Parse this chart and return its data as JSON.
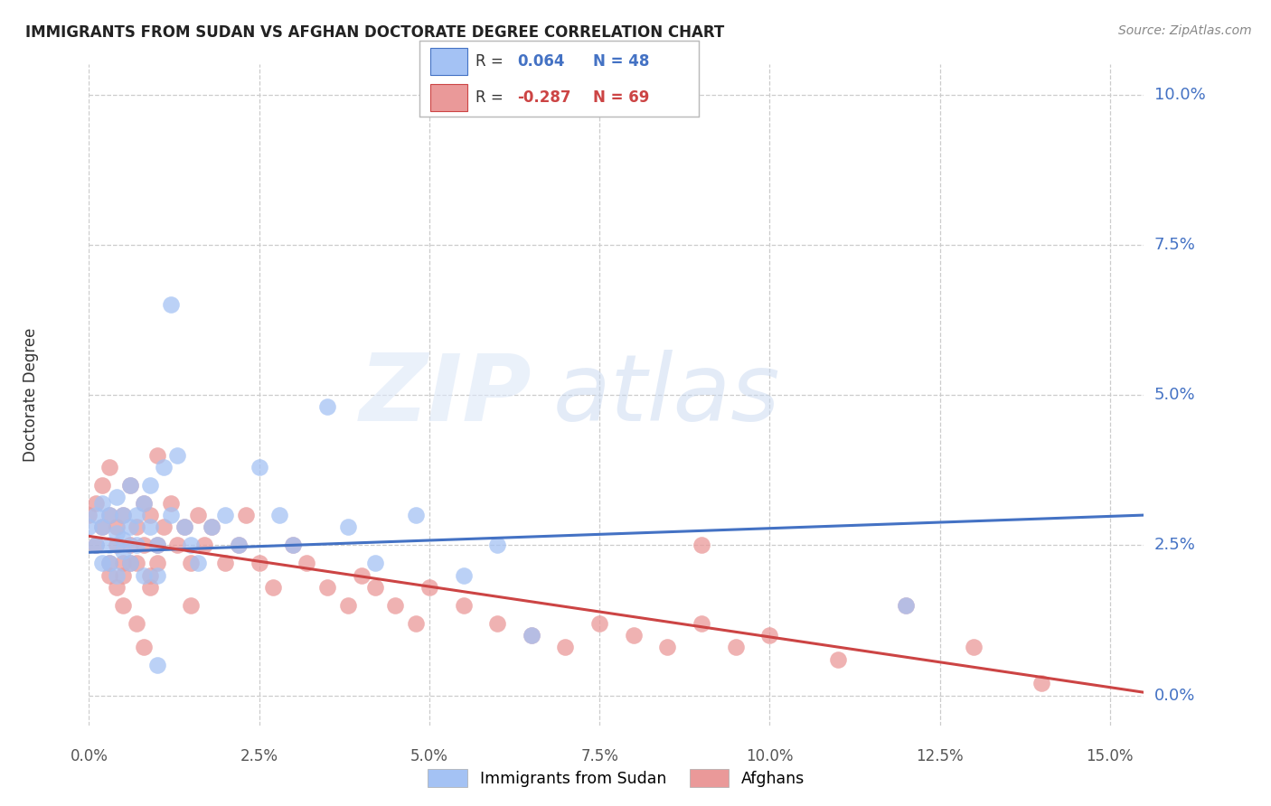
{
  "title": "IMMIGRANTS FROM SUDAN VS AFGHAN DOCTORATE DEGREE CORRELATION CHART",
  "source": "Source: ZipAtlas.com",
  "ylabel": "Doctorate Degree",
  "xlim": [
    0.0,
    0.155
  ],
  "ylim": [
    -0.005,
    0.105
  ],
  "sudan_R": 0.064,
  "sudan_N": 48,
  "afghan_R": -0.287,
  "afghan_N": 69,
  "sudan_color": "#a4c2f4",
  "afghan_color": "#ea9999",
  "trend_blue": "#4472c4",
  "trend_pink": "#cc4444",
  "blue_trend_start": 0.0238,
  "blue_trend_end": 0.03,
  "pink_trend_start": 0.0265,
  "pink_trend_end": 0.0005,
  "sudan_x": [
    0.0,
    0.001,
    0.001,
    0.002,
    0.002,
    0.002,
    0.003,
    0.003,
    0.003,
    0.004,
    0.004,
    0.004,
    0.005,
    0.005,
    0.005,
    0.006,
    0.006,
    0.006,
    0.007,
    0.007,
    0.008,
    0.008,
    0.009,
    0.009,
    0.01,
    0.01,
    0.011,
    0.012,
    0.013,
    0.014,
    0.015,
    0.016,
    0.018,
    0.02,
    0.022,
    0.025,
    0.028,
    0.03,
    0.035,
    0.038,
    0.042,
    0.048,
    0.055,
    0.06,
    0.065,
    0.012,
    0.12,
    0.01
  ],
  "sudan_y": [
    0.028,
    0.025,
    0.03,
    0.022,
    0.028,
    0.032,
    0.025,
    0.022,
    0.03,
    0.027,
    0.033,
    0.02,
    0.026,
    0.03,
    0.024,
    0.035,
    0.028,
    0.022,
    0.03,
    0.025,
    0.032,
    0.02,
    0.028,
    0.035,
    0.025,
    0.02,
    0.038,
    0.03,
    0.04,
    0.028,
    0.025,
    0.022,
    0.028,
    0.03,
    0.025,
    0.038,
    0.03,
    0.025,
    0.048,
    0.028,
    0.022,
    0.03,
    0.02,
    0.025,
    0.01,
    0.065,
    0.015,
    0.005
  ],
  "afghan_x": [
    0.0,
    0.001,
    0.001,
    0.002,
    0.002,
    0.003,
    0.003,
    0.003,
    0.004,
    0.004,
    0.005,
    0.005,
    0.005,
    0.006,
    0.006,
    0.007,
    0.007,
    0.008,
    0.008,
    0.009,
    0.009,
    0.01,
    0.01,
    0.011,
    0.012,
    0.013,
    0.014,
    0.015,
    0.016,
    0.017,
    0.018,
    0.02,
    0.022,
    0.023,
    0.025,
    0.027,
    0.03,
    0.032,
    0.035,
    0.038,
    0.04,
    0.042,
    0.045,
    0.048,
    0.05,
    0.055,
    0.06,
    0.065,
    0.07,
    0.075,
    0.08,
    0.085,
    0.09,
    0.095,
    0.1,
    0.11,
    0.12,
    0.13,
    0.14,
    0.003,
    0.004,
    0.005,
    0.006,
    0.007,
    0.008,
    0.009,
    0.01,
    0.015,
    0.09
  ],
  "afghan_y": [
    0.03,
    0.025,
    0.032,
    0.028,
    0.035,
    0.022,
    0.03,
    0.038,
    0.025,
    0.028,
    0.022,
    0.03,
    0.02,
    0.025,
    0.035,
    0.028,
    0.022,
    0.032,
    0.025,
    0.03,
    0.02,
    0.025,
    0.04,
    0.028,
    0.032,
    0.025,
    0.028,
    0.022,
    0.03,
    0.025,
    0.028,
    0.022,
    0.025,
    0.03,
    0.022,
    0.018,
    0.025,
    0.022,
    0.018,
    0.015,
    0.02,
    0.018,
    0.015,
    0.012,
    0.018,
    0.015,
    0.012,
    0.01,
    0.008,
    0.012,
    0.01,
    0.008,
    0.012,
    0.008,
    0.01,
    0.006,
    0.015,
    0.008,
    0.002,
    0.02,
    0.018,
    0.015,
    0.022,
    0.012,
    0.008,
    0.018,
    0.022,
    0.015,
    0.025
  ]
}
